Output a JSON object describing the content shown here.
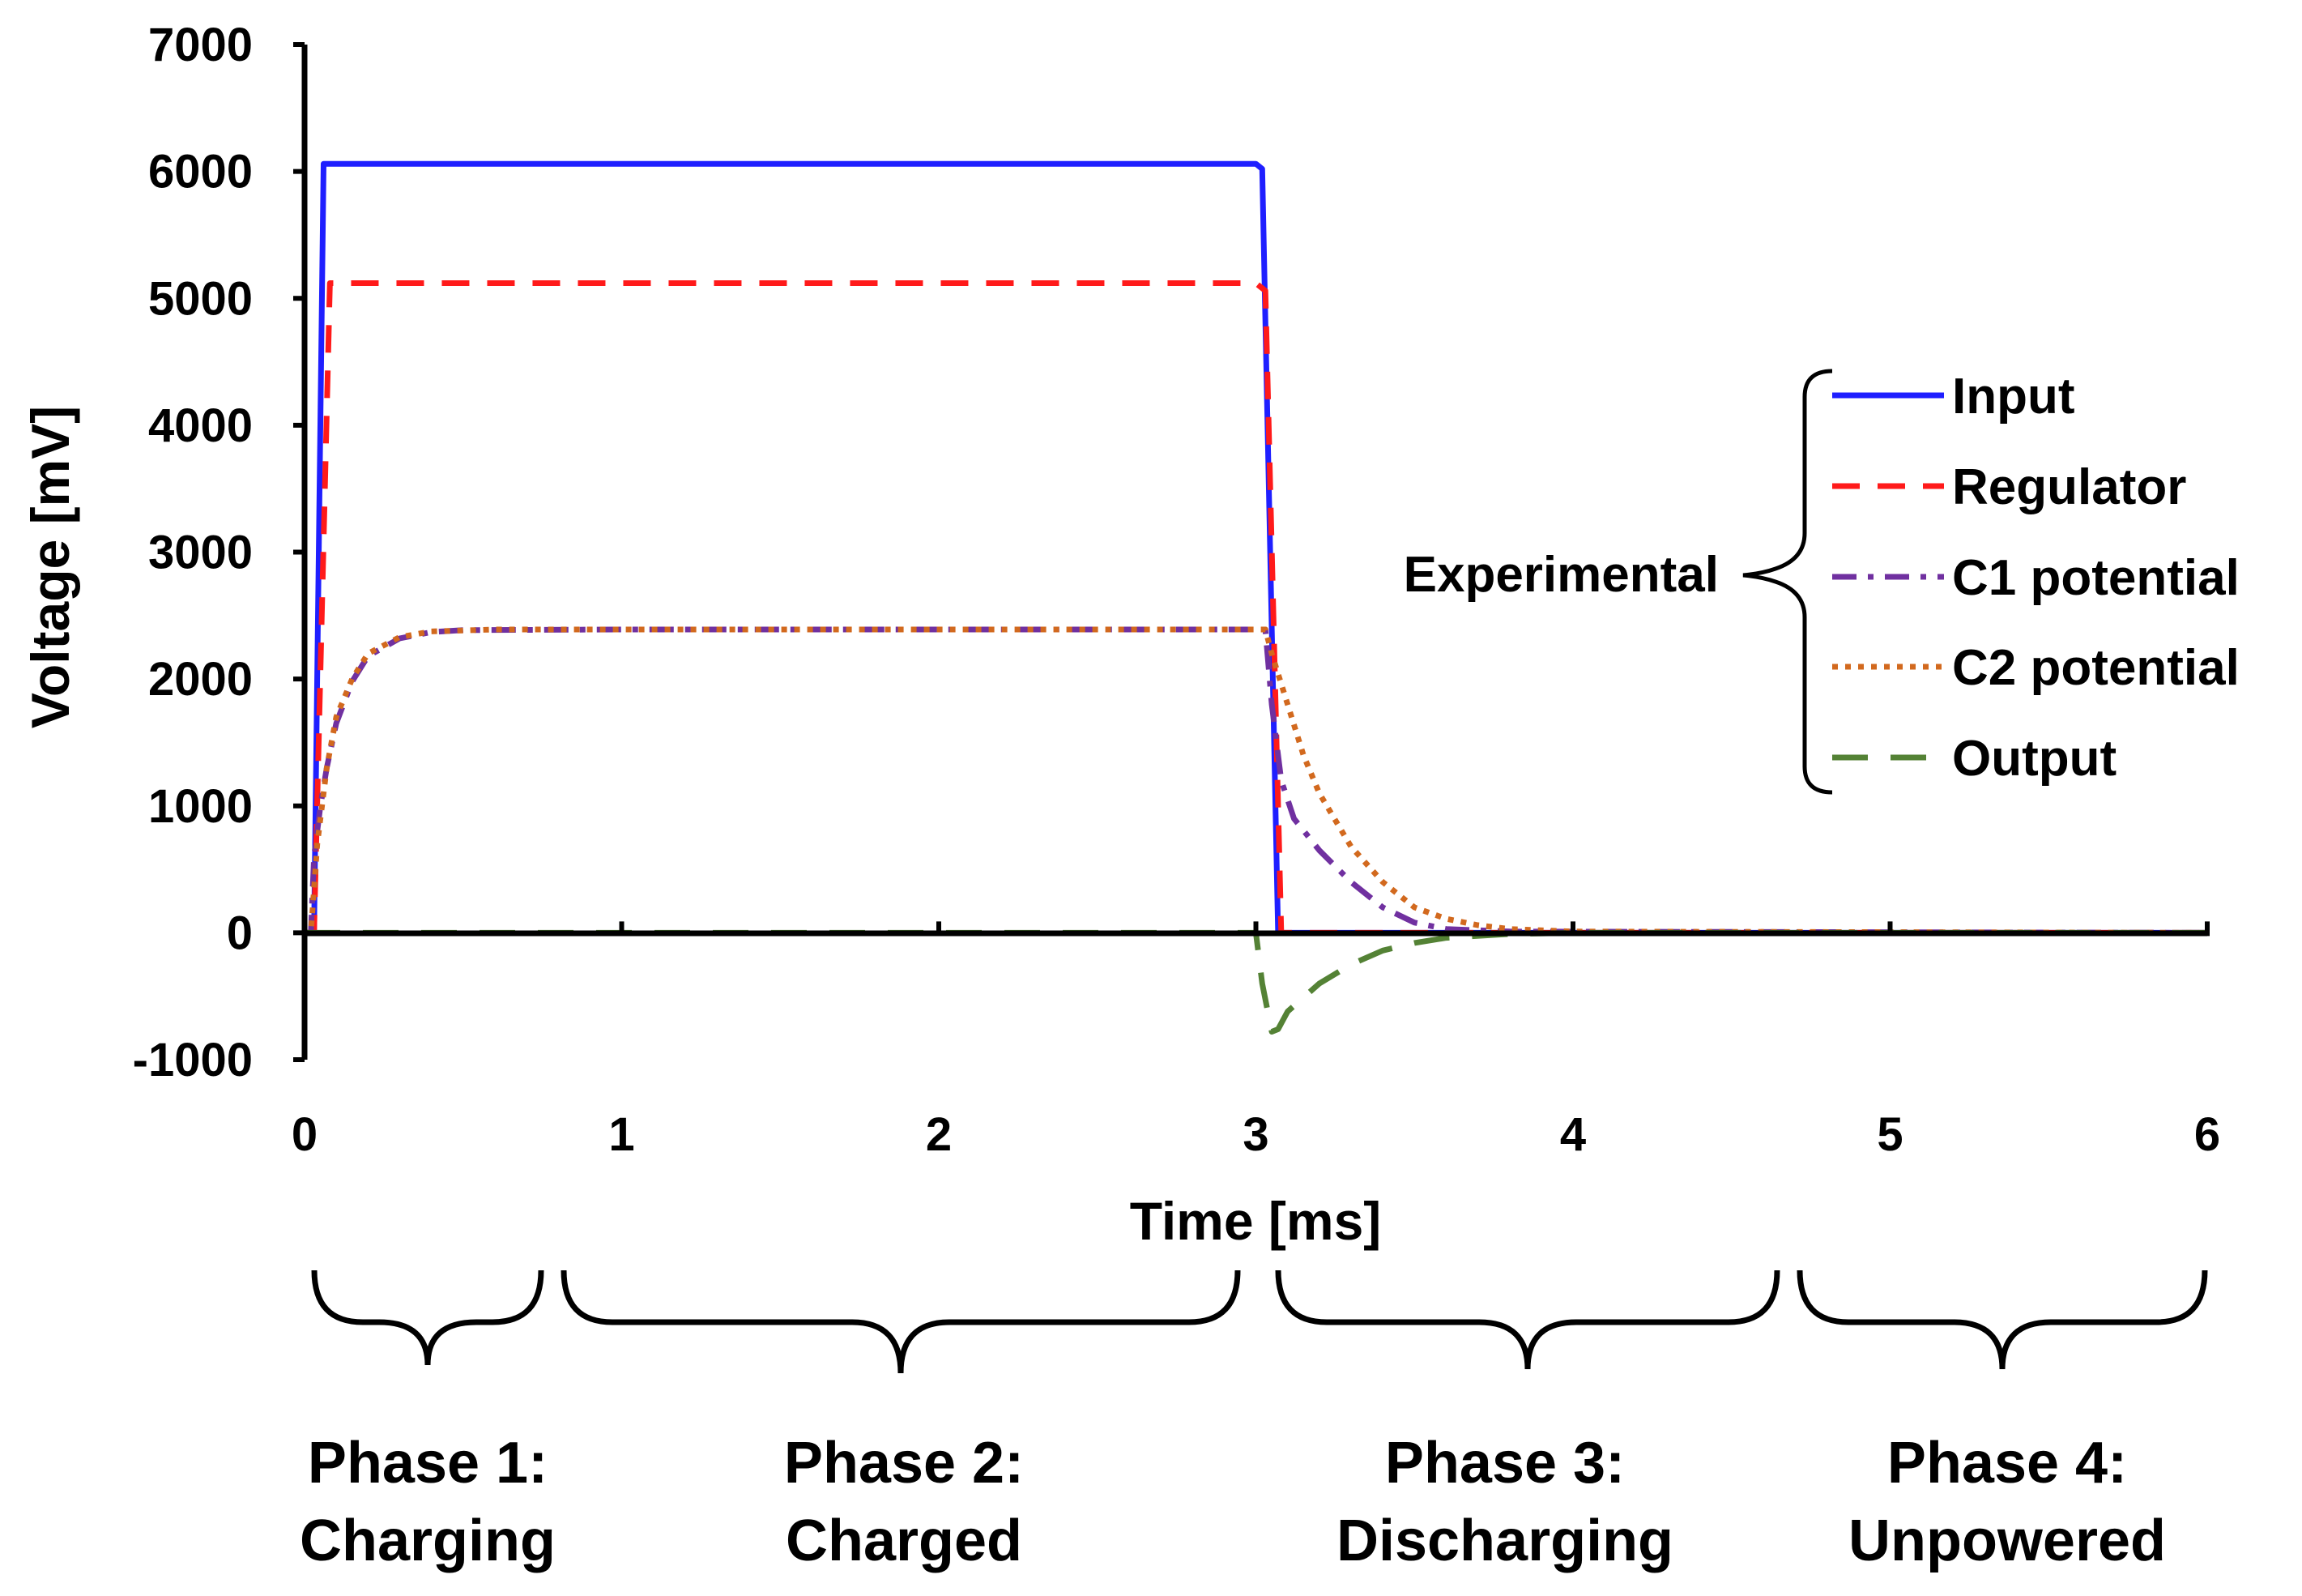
{
  "chart_data": {
    "type": "line",
    "xlabel": "Time [ms]",
    "ylabel": "Voltage [mV]",
    "xlim": [
      0,
      6
    ],
    "ylim": [
      -1000,
      7000
    ],
    "xticks": [
      0,
      1,
      2,
      3,
      4,
      5,
      6
    ],
    "yticks": [
      -1000,
      0,
      1000,
      2000,
      3000,
      4000,
      5000,
      6000,
      7000
    ],
    "legend_group_label": "Experimental",
    "legend_position": "right",
    "series": [
      {
        "name": "Input",
        "color": "#1f1fff",
        "style": "solid",
        "points": [
          [
            0,
            0
          ],
          [
            0.03,
            0
          ],
          [
            0.06,
            6060
          ],
          [
            3.0,
            6060
          ],
          [
            3.02,
            6020
          ],
          [
            3.07,
            0
          ],
          [
            6,
            0
          ]
        ]
      },
      {
        "name": "Regulator",
        "color": "#ff1a1a",
        "style": "dashed",
        "points": [
          [
            0,
            0
          ],
          [
            0.03,
            0
          ],
          [
            0.08,
            5120
          ],
          [
            3.0,
            5120
          ],
          [
            3.03,
            5060
          ],
          [
            3.08,
            0
          ],
          [
            6,
            0
          ]
        ]
      },
      {
        "name": "C1 potential",
        "color": "#7030a0",
        "style": "dashdot",
        "points": [
          [
            0,
            0
          ],
          [
            0.02,
            0
          ],
          [
            0.03,
            600
          ],
          [
            0.05,
            1000
          ],
          [
            0.07,
            1300
          ],
          [
            0.1,
            1650
          ],
          [
            0.15,
            1980
          ],
          [
            0.2,
            2180
          ],
          [
            0.3,
            2320
          ],
          [
            0.4,
            2370
          ],
          [
            0.5,
            2385
          ],
          [
            1.0,
            2390
          ],
          [
            2.0,
            2390
          ],
          [
            3.03,
            2390
          ],
          [
            3.05,
            1800
          ],
          [
            3.08,
            1200
          ],
          [
            3.12,
            900
          ],
          [
            3.2,
            650
          ],
          [
            3.3,
            400
          ],
          [
            3.4,
            200
          ],
          [
            3.5,
            80
          ],
          [
            3.6,
            30
          ],
          [
            3.8,
            10
          ],
          [
            6,
            0
          ]
        ]
      },
      {
        "name": "C2 potential",
        "color": "#d2691e",
        "style": "dotted",
        "points": [
          [
            0,
            0
          ],
          [
            0.02,
            0
          ],
          [
            0.04,
            700
          ],
          [
            0.07,
            1300
          ],
          [
            0.1,
            1700
          ],
          [
            0.15,
            2000
          ],
          [
            0.2,
            2200
          ],
          [
            0.3,
            2330
          ],
          [
            0.4,
            2375
          ],
          [
            0.6,
            2390
          ],
          [
            3.03,
            2390
          ],
          [
            3.05,
            2200
          ],
          [
            3.1,
            1800
          ],
          [
            3.15,
            1400
          ],
          [
            3.2,
            1100
          ],
          [
            3.3,
            680
          ],
          [
            3.4,
            400
          ],
          [
            3.5,
            200
          ],
          [
            3.6,
            110
          ],
          [
            3.7,
            60
          ],
          [
            3.8,
            30
          ],
          [
            4.0,
            10
          ],
          [
            6,
            0
          ]
        ]
      },
      {
        "name": "Output",
        "color": "#548235",
        "style": "longdash",
        "points": [
          [
            0,
            0
          ],
          [
            3.0,
            0
          ],
          [
            3.02,
            -400
          ],
          [
            3.05,
            -780
          ],
          [
            3.07,
            -760
          ],
          [
            3.1,
            -620
          ],
          [
            3.2,
            -400
          ],
          [
            3.3,
            -250
          ],
          [
            3.4,
            -140
          ],
          [
            3.5,
            -80
          ],
          [
            3.6,
            -40
          ],
          [
            3.8,
            -10
          ],
          [
            4.0,
            0
          ],
          [
            6,
            0
          ]
        ]
      }
    ]
  },
  "phases": [
    {
      "line1": "Phase 1:",
      "line2": "Charging"
    },
    {
      "line1": "Phase 2:",
      "line2": "Charged"
    },
    {
      "line1": "Phase 3:",
      "line2": "Discharging"
    },
    {
      "line1": "Phase 4:",
      "line2": "Unpowered"
    }
  ]
}
